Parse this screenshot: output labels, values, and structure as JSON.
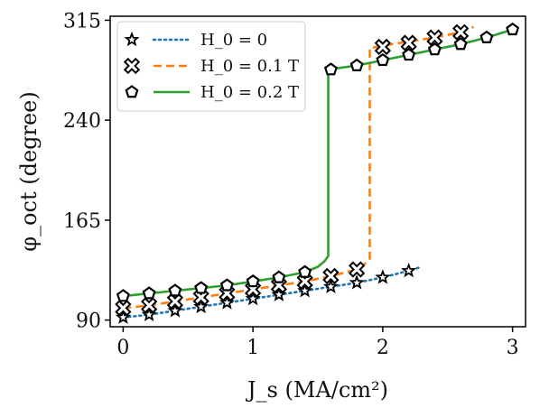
{
  "chart_data": {
    "type": "line",
    "xlabel": "J_s (MA/cm²)",
    "ylabel": "φ_oct (degree)",
    "xlim": [
      -0.1,
      3.1
    ],
    "ylim": [
      85,
      318
    ],
    "xticks": [
      "0",
      "1",
      "2",
      "3"
    ],
    "yticks": [
      "90",
      "165",
      "240",
      "315"
    ],
    "grid": false,
    "legend_position": "top-left",
    "series": [
      {
        "name": "H_0 = 0",
        "color": "#1f77b4",
        "line_style": "dotted",
        "marker": "star",
        "x": [
          0,
          0.2,
          0.4,
          0.6,
          0.8,
          1.0,
          1.2,
          1.4,
          1.6,
          1.8,
          2.0,
          2.2,
          2.3
        ],
        "y": [
          92,
          94,
          97,
          100,
          103,
          106,
          109,
          112,
          115,
          118,
          122,
          127,
          130
        ],
        "marker_x": [
          0,
          0.2,
          0.4,
          0.6,
          0.8,
          1.0,
          1.2,
          1.4,
          1.6,
          1.8,
          2.0,
          2.2
        ],
        "marker_y": [
          92,
          94,
          97,
          100,
          103,
          106,
          109,
          112,
          115,
          118,
          122,
          127
        ]
      },
      {
        "name": "H_0 = 0.1 T",
        "color": "#ff7f0e",
        "line_style": "dashed",
        "marker": "cross",
        "x": [
          0,
          0.2,
          0.4,
          0.6,
          0.8,
          1.0,
          1.2,
          1.4,
          1.6,
          1.8,
          1.85,
          1.9,
          1.9,
          2.0,
          2.2,
          2.4,
          2.6,
          2.7
        ],
        "y": [
          99,
          101,
          104,
          107,
          110,
          113,
          116,
          119,
          123,
          128,
          131,
          136,
          294,
          296,
          299,
          302,
          306,
          310
        ],
        "marker_x": [
          0,
          0.2,
          0.4,
          0.6,
          0.8,
          1.0,
          1.2,
          1.4,
          1.6,
          1.8,
          2.0,
          2.2,
          2.4,
          2.6
        ],
        "marker_y": [
          99,
          101,
          104,
          107,
          110,
          113,
          116,
          119,
          123,
          128,
          295,
          298,
          302,
          306
        ]
      },
      {
        "name": "H_0 = 0.2 T",
        "color": "#2ca02c",
        "line_style": "solid",
        "marker": "pentagon",
        "x": [
          0,
          0.2,
          0.4,
          0.6,
          0.8,
          1.0,
          1.2,
          1.4,
          1.5,
          1.55,
          1.58,
          1.58,
          1.8,
          2.0,
          2.2,
          2.4,
          2.6,
          2.8,
          3.0
        ],
        "y": [
          108,
          110,
          112,
          114,
          116,
          119,
          122,
          126,
          130,
          134,
          138,
          278,
          281,
          285,
          289,
          293,
          297,
          302,
          308
        ],
        "marker_x": [
          0,
          0.2,
          0.4,
          0.6,
          0.8,
          1.0,
          1.2,
          1.4,
          1.6,
          1.8,
          2.0,
          2.2,
          2.4,
          2.6,
          2.8,
          3.0
        ],
        "marker_y": [
          108,
          110,
          112,
          114,
          116,
          119,
          122,
          126,
          278,
          281,
          285,
          289,
          293,
          297,
          302,
          308
        ]
      }
    ]
  }
}
